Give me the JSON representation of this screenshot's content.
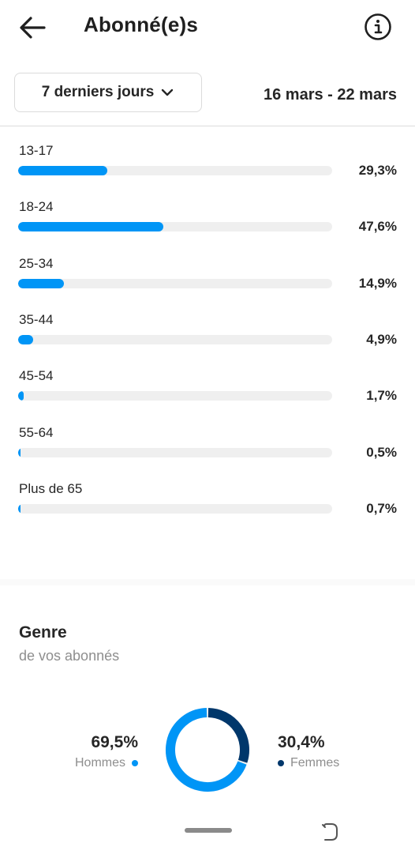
{
  "header": {
    "title": "Abonné(e)s",
    "back_icon": "arrow-left-icon",
    "info_icon": "info-icon"
  },
  "filter": {
    "range_label": "7 derniers jours",
    "date_range": "16 mars - 22 mars"
  },
  "age_groups": [
    {
      "label": "13-17",
      "percent_text": "29,3%",
      "value": 29.3
    },
    {
      "label": "18-24",
      "percent_text": "47,6%",
      "value": 47.6
    },
    {
      "label": "25-34",
      "percent_text": "14,9%",
      "value": 14.9
    },
    {
      "label": "35-44",
      "percent_text": "4,9%",
      "value": 4.9
    },
    {
      "label": "45-54",
      "percent_text": "1,7%",
      "value": 1.7
    },
    {
      "label": "55-64",
      "percent_text": "0,5%",
      "value": 0.5
    },
    {
      "label": "Plus de 65",
      "percent_text": "0,7%",
      "value": 0.7
    }
  ],
  "gender": {
    "title": "Genre",
    "subtitle": "de vos abonnés",
    "men": {
      "label": "Hommes",
      "percent_text": "69,5%",
      "value": 69.5,
      "color": "#0095f6"
    },
    "women": {
      "label": "Femmes",
      "percent_text": "30,4%",
      "value": 30.4,
      "color": "#00376b"
    }
  },
  "colors": {
    "accent": "#0095f6",
    "dark_accent": "#00376b",
    "track": "#efefef"
  }
}
